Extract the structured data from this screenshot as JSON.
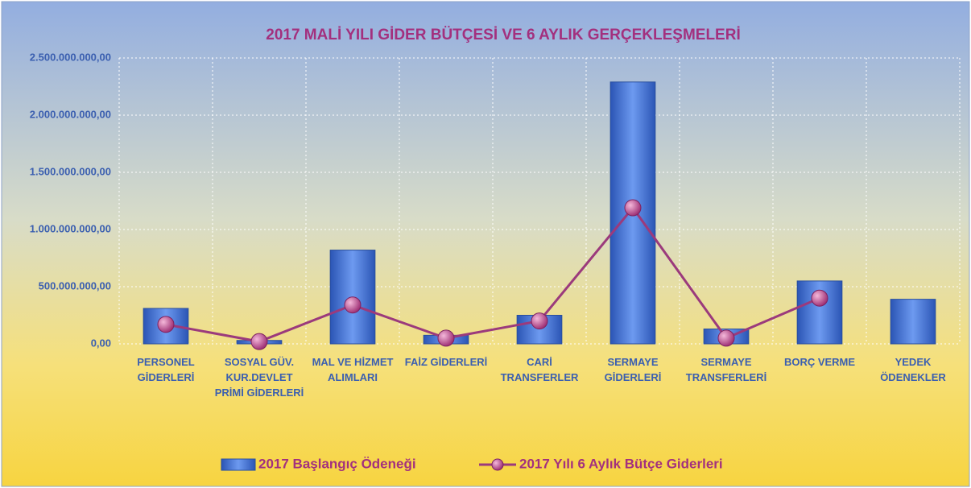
{
  "chart_data": {
    "type": "bar-line",
    "title": "2017 MALİ YILI  GİDER BÜTÇESİ VE 6 AYLIK GERÇEKLEŞMELERİ",
    "categories": [
      "PERSONEL GİDERLERİ",
      "SOSYAL GÜV. KUR.DEVLET PRİMİ GİDERLERİ",
      "MAL VE HİZMET ALIMLARI",
      "FAİZ GİDERLERİ",
      "CARİ TRANSFERLER",
      "SERMAYE GİDERLERİ",
      "SERMAYE TRANSFERLERİ",
      "BORÇ VERME",
      "YEDEK ÖDENEKLER"
    ],
    "series": [
      {
        "name": "2017 Başlangıç Ödeneği",
        "type": "bar",
        "color": "#3f6fd0",
        "values": [
          310000000,
          30000000,
          820000000,
          75000000,
          250000000,
          2290000000,
          130000000,
          550000000,
          390000000
        ]
      },
      {
        "name": "2017 Yılı 6 Aylık Bütçe Giderleri",
        "type": "line",
        "color": "#9b3a7c",
        "values": [
          170000000,
          20000000,
          340000000,
          50000000,
          200000000,
          1190000000,
          50000000,
          400000000,
          null
        ]
      }
    ],
    "ylim": [
      0,
      2500000000
    ],
    "yticks": [
      {
        "value": 0,
        "label": "0,00"
      },
      {
        "value": 500000000,
        "label": "500.000.000,00"
      },
      {
        "value": 1000000000,
        "label": "1.000.000.000,00"
      },
      {
        "value": 1500000000,
        "label": "1.500.000.000,00"
      },
      {
        "value": 2000000000,
        "label": "2.000.000.000,00"
      },
      {
        "value": 2500000000,
        "label": "2.500.000.000,00"
      }
    ],
    "grid": true,
    "legend": "bottom"
  }
}
